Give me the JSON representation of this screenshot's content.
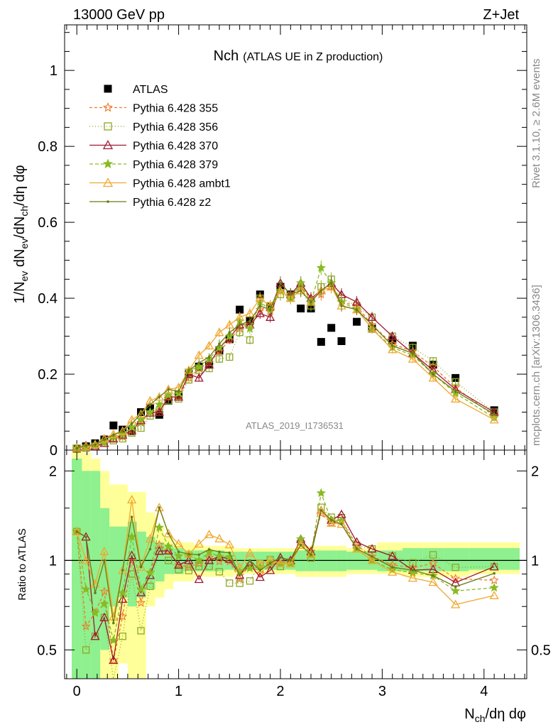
{
  "header": {
    "left": "13000 GeV pp",
    "right": "Z+Jet"
  },
  "side": {
    "rivet": "Rivet 3.1.10, ≥ 2.6M events",
    "mcplots": "mcplots.cern.ch [arXiv:1306.3436]"
  },
  "chart_data": {
    "type": "line",
    "title": "Nch",
    "subtitle": "(ATLAS UE in Z production)",
    "watermark": "ATLAS_2019_I1736531",
    "xlabel": "N_ch/dη dφ",
    "ylabel": "1/N_ev dN_ev/dN_ch/dη dφ",
    "ratio_ylabel": "Ratio to ATLAS",
    "xlim": [
      -0.12,
      4.42
    ],
    "ylim": [
      0,
      1.12
    ],
    "ratio_ylim": [
      0.4,
      2.35
    ],
    "xticks": [
      "0",
      "1",
      "2",
      "3",
      "4"
    ],
    "yticks": [
      "0",
      "0.2",
      "0.4",
      "0.6",
      "0.8",
      "1"
    ],
    "ratio_yticks": [
      "0.5",
      "1",
      "2"
    ],
    "x": [
      0.0,
      0.09,
      0.18,
      0.27,
      0.36,
      0.45,
      0.54,
      0.63,
      0.72,
      0.81,
      0.9,
      1.0,
      1.1,
      1.2,
      1.3,
      1.4,
      1.5,
      1.6,
      1.7,
      1.8,
      1.9,
      2.0,
      2.1,
      2.2,
      2.3,
      2.4,
      2.5,
      2.6,
      2.75,
      2.9,
      3.1,
      3.3,
      3.5,
      3.72,
      4.1
    ],
    "series": [
      {
        "name": "ATLAS",
        "color": "#000000",
        "marker": "square-filled",
        "dash": "",
        "values": [
          0.004,
          0.01,
          0.018,
          0.028,
          0.065,
          0.054,
          0.05,
          0.1,
          0.11,
          0.093,
          0.13,
          0.145,
          0.2,
          0.22,
          0.225,
          0.262,
          0.292,
          0.37,
          0.34,
          0.41,
          0.378,
          0.43,
          0.41,
          0.373,
          0.373,
          0.285,
          0.322,
          0.287,
          0.338,
          0.32,
          0.29,
          0.275,
          0.225,
          0.19,
          0.105
        ]
      },
      {
        "name": "Pythia 6.428 355",
        "color": "#f07a28",
        "marker": "star-open",
        "dash": "4,3",
        "values": [
          0.005,
          0.006,
          0.012,
          0.022,
          0.03,
          0.035,
          0.05,
          0.072,
          0.1,
          0.105,
          0.14,
          0.14,
          0.19,
          0.215,
          0.23,
          0.26,
          0.29,
          0.32,
          0.33,
          0.37,
          0.365,
          0.42,
          0.41,
          0.43,
          0.4,
          0.41,
          0.43,
          0.39,
          0.38,
          0.33,
          0.28,
          0.26,
          0.22,
          0.165,
          0.09
        ]
      },
      {
        "name": "Pythia 6.428 356",
        "color": "#8ea824",
        "marker": "square-open",
        "dash": "1,3",
        "values": [
          0.005,
          0.005,
          0.01,
          0.018,
          0.025,
          0.03,
          0.045,
          0.058,
          0.09,
          0.1,
          0.13,
          0.135,
          0.185,
          0.21,
          0.215,
          0.24,
          0.245,
          0.31,
          0.29,
          0.4,
          0.38,
          0.41,
          0.405,
          0.42,
          0.38,
          0.43,
          0.45,
          0.4,
          0.38,
          0.35,
          0.3,
          0.27,
          0.235,
          0.18,
          0.1
        ]
      },
      {
        "name": "Pythia 6.428 370",
        "color": "#a01830",
        "marker": "triangle-open",
        "dash": "",
        "values": [
          0.005,
          0.012,
          0.01,
          0.018,
          0.03,
          0.04,
          0.052,
          0.078,
          0.098,
          0.1,
          0.14,
          0.14,
          0.2,
          0.19,
          0.225,
          0.27,
          0.295,
          0.33,
          0.33,
          0.36,
          0.35,
          0.44,
          0.41,
          0.44,
          0.4,
          0.42,
          0.44,
          0.41,
          0.39,
          0.35,
          0.3,
          0.255,
          0.21,
          0.16,
          0.1
        ]
      },
      {
        "name": "Pythia 6.428 379",
        "color": "#88bb22",
        "marker": "star-filled",
        "dash": "5,3",
        "values": [
          0.005,
          0.008,
          0.012,
          0.02,
          0.035,
          0.042,
          0.06,
          0.08,
          0.1,
          0.12,
          0.145,
          0.15,
          0.21,
          0.22,
          0.24,
          0.27,
          0.3,
          0.34,
          0.32,
          0.39,
          0.37,
          0.42,
          0.4,
          0.44,
          0.39,
          0.48,
          0.44,
          0.39,
          0.37,
          0.32,
          0.27,
          0.25,
          0.2,
          0.15,
          0.085
        ]
      },
      {
        "name": "Pythia 6.428 ambt1",
        "color": "#f0a830",
        "marker": "triangle-open",
        "dash": "",
        "values": [
          0.005,
          0.01,
          0.015,
          0.03,
          0.042,
          0.05,
          0.08,
          0.095,
          0.13,
          0.14,
          0.16,
          0.165,
          0.21,
          0.25,
          0.275,
          0.31,
          0.33,
          0.35,
          0.36,
          0.4,
          0.38,
          0.42,
          0.4,
          0.42,
          0.39,
          0.42,
          0.43,
          0.38,
          0.37,
          0.32,
          0.265,
          0.24,
          0.19,
          0.135,
          0.08
        ]
      },
      {
        "name": "Pythia 6.428 z2",
        "color": "#6b7a12",
        "marker": "dot",
        "dash": "",
        "values": [
          0.005,
          0.012,
          0.014,
          0.028,
          0.04,
          0.05,
          0.07,
          0.095,
          0.12,
          0.14,
          0.16,
          0.155,
          0.21,
          0.23,
          0.245,
          0.28,
          0.31,
          0.33,
          0.34,
          0.38,
          0.37,
          0.44,
          0.41,
          0.42,
          0.39,
          0.42,
          0.44,
          0.38,
          0.37,
          0.33,
          0.275,
          0.255,
          0.2,
          0.155,
          0.095
        ]
      }
    ],
    "bands": {
      "note": "Data uncertainty bands in ratio panel (inner green, outer yellow), as ratio bounds",
      "x_edges": [
        -0.05,
        0.05,
        0.14,
        0.23,
        0.32,
        0.41,
        0.5,
        0.59,
        0.68,
        0.77,
        0.86,
        0.95,
        1.05,
        1.15,
        1.25,
        1.35,
        1.45,
        1.55,
        1.65,
        1.75,
        1.85,
        1.95,
        2.05,
        2.15,
        2.25,
        2.35,
        2.45,
        2.55,
        2.65,
        2.85,
        2.95,
        3.2,
        3.4,
        3.6,
        3.85,
        4.35
      ],
      "green": [
        [
          0.4,
          2.2
        ],
        [
          0.4,
          2.0
        ],
        [
          0.4,
          2.0
        ],
        [
          0.5,
          1.5
        ],
        [
          0.7,
          1.3
        ],
        [
          0.75,
          1.3
        ],
        [
          0.7,
          1.35
        ],
        [
          0.75,
          1.25
        ],
        [
          0.8,
          1.2
        ],
        [
          0.85,
          1.15
        ],
        [
          0.9,
          1.12
        ],
        [
          0.9,
          1.1
        ],
        [
          0.92,
          1.08
        ],
        [
          0.92,
          1.08
        ],
        [
          0.92,
          1.08
        ],
        [
          0.92,
          1.08
        ],
        [
          0.93,
          1.07
        ],
        [
          0.93,
          1.07
        ],
        [
          0.93,
          1.07
        ],
        [
          0.93,
          1.07
        ],
        [
          0.93,
          1.07
        ],
        [
          0.93,
          1.07
        ],
        [
          0.93,
          1.07
        ],
        [
          0.92,
          1.08
        ],
        [
          0.92,
          1.08
        ],
        [
          0.92,
          1.08
        ],
        [
          0.92,
          1.08
        ],
        [
          0.92,
          1.08
        ],
        [
          0.93,
          1.07
        ],
        [
          0.93,
          1.08
        ],
        [
          0.92,
          1.08
        ],
        [
          0.92,
          1.1
        ],
        [
          0.92,
          1.1
        ],
        [
          0.92,
          1.1
        ],
        [
          0.93,
          1.1
        ]
      ],
      "yellow": [
        [
          0.4,
          2.35
        ],
        [
          0.4,
          2.3
        ],
        [
          0.4,
          2.2
        ],
        [
          0.4,
          2.0
        ],
        [
          0.4,
          1.8
        ],
        [
          0.45,
          1.8
        ],
        [
          0.4,
          1.7
        ],
        [
          0.4,
          1.7
        ],
        [
          0.7,
          1.45
        ],
        [
          0.75,
          1.3
        ],
        [
          0.8,
          1.2
        ],
        [
          0.85,
          1.15
        ],
        [
          0.85,
          1.15
        ],
        [
          0.88,
          1.13
        ],
        [
          0.88,
          1.12
        ],
        [
          0.88,
          1.12
        ],
        [
          0.88,
          1.12
        ],
        [
          0.9,
          1.1
        ],
        [
          0.9,
          1.1
        ],
        [
          0.9,
          1.1
        ],
        [
          0.9,
          1.1
        ],
        [
          0.9,
          1.1
        ],
        [
          0.9,
          1.1
        ],
        [
          0.88,
          1.12
        ],
        [
          0.88,
          1.12
        ],
        [
          0.88,
          1.12
        ],
        [
          0.88,
          1.12
        ],
        [
          0.88,
          1.12
        ],
        [
          0.9,
          1.1
        ],
        [
          0.9,
          1.12
        ],
        [
          0.9,
          1.15
        ],
        [
          0.88,
          1.15
        ],
        [
          0.88,
          1.15
        ],
        [
          0.88,
          1.15
        ],
        [
          0.9,
          1.15
        ]
      ]
    }
  }
}
